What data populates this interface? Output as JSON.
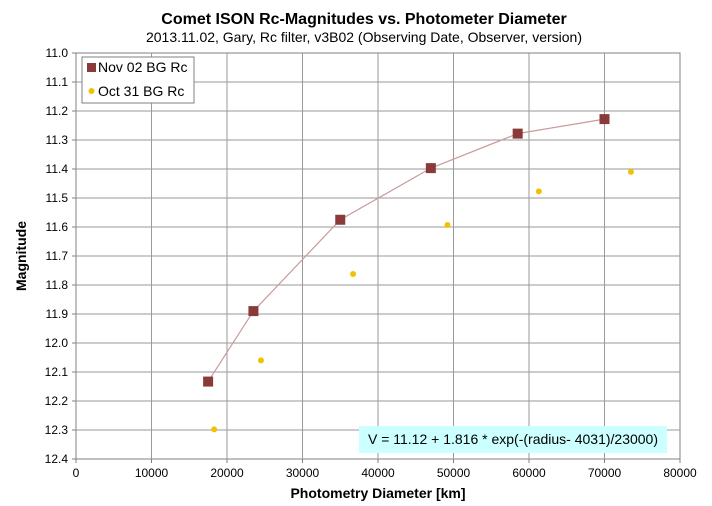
{
  "chart_data": {
    "type": "scatter",
    "title": "Comet ISON Rc-Magnitudes  vs. Photometer Diameter",
    "subtitle": "2013.11.02,  Gary,  Rc filter, v3B02 (Observing Date, Observer, version)",
    "xlabel": "Photometry Diameter  [km]",
    "ylabel": "Magnitude",
    "xlim": [
      0,
      80000
    ],
    "ylim": [
      11.0,
      12.4
    ],
    "y_inverted": true,
    "x_ticks": [
      0,
      10000,
      20000,
      30000,
      40000,
      50000,
      60000,
      70000,
      80000
    ],
    "x_tick_labels": [
      "0",
      "10000",
      "20000",
      "30000",
      "40000",
      "50000",
      "60000",
      "70000",
      "80000"
    ],
    "y_ticks": [
      11.0,
      11.1,
      11.2,
      11.3,
      11.4,
      11.5,
      11.6,
      11.7,
      11.8,
      11.9,
      12.0,
      12.1,
      12.2,
      12.3,
      12.4
    ],
    "y_tick_labels": [
      "11.0",
      "11.1",
      "11.2",
      "11.3",
      "11.4",
      "11.5",
      "11.6",
      "11.7",
      "11.8",
      "11.9",
      "12.0",
      "12.1",
      "12.2",
      "12.3",
      "12.4"
    ],
    "grid": true,
    "legend_position": "top-left",
    "series": [
      {
        "name": "Nov 02 BG Rc",
        "marker": "square",
        "color": "#8b3a3a",
        "connect_line": true,
        "line_color": "#c99a9a",
        "x": [
          17500,
          23500,
          35000,
          47000,
          58500,
          70000
        ],
        "y": [
          12.133,
          11.89,
          11.575,
          11.397,
          11.278,
          11.228
        ]
      },
      {
        "name": "Oct 31 BG Rc",
        "marker": "circle",
        "color": "#f2c200",
        "connect_line": false,
        "x": [
          18300,
          24500,
          36700,
          49200,
          61300,
          73500
        ],
        "y": [
          12.298,
          12.06,
          11.762,
          11.593,
          11.477,
          11.41
        ]
      }
    ],
    "annotation": {
      "text": "V = 11.12 + 1.816 * exp(-(radius- 4031)/23000)",
      "background": "#ccffff"
    }
  }
}
